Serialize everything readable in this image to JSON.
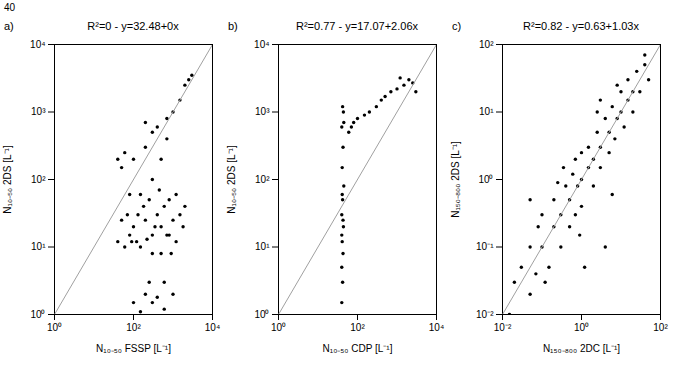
{
  "page": "40",
  "chart_data": [
    {
      "type": "scatter",
      "panel": "a)",
      "title": "R²=0 - y=32.48+0x",
      "x_label": "N₁₀₋₅₀ FSSP [L⁻¹]",
      "y_label": "N₁₀₋₅₀ 2DS [L⁻¹]",
      "log": true,
      "grid": false,
      "xlim": [
        1,
        10000
      ],
      "ylim": [
        1,
        10000
      ],
      "xticks": [
        {
          "value": 1,
          "label": "10⁰"
        },
        {
          "value": 100,
          "label": "10²"
        },
        {
          "value": 10000,
          "label": "10⁴"
        }
      ],
      "yticks": [
        {
          "value": 1,
          "label": "10⁰"
        },
        {
          "value": 10,
          "label": "10¹"
        },
        {
          "value": 100,
          "label": "10²"
        },
        {
          "value": 1000,
          "label": "10³"
        },
        {
          "value": 10000,
          "label": "10⁴"
        }
      ],
      "series": [
        {
          "type": "scatter",
          "marker": "dot",
          "color": "#000000",
          "x": [
            40,
            50,
            60,
            70,
            80,
            100,
            100,
            120,
            150,
            150,
            200,
            200,
            250,
            300,
            300,
            300,
            400,
            400,
            500,
            500,
            600,
            600,
            700,
            800,
            800,
            1000,
            1000,
            1200,
            1500,
            1500,
            2000,
            2000,
            2500,
            3000,
            100,
            200,
            150,
            250,
            400,
            600,
            300,
            500,
            900,
            1000,
            80,
            60,
            40,
            50,
            700,
            350,
            450,
            1200,
            180,
            130,
            90,
            220,
            1800,
            700,
            300,
            200
          ],
          "values": [
            200,
            150,
            250,
            30,
            15,
            20,
            200,
            12,
            60,
            10,
            25,
            300,
            50,
            100,
            15,
            1.5,
            30,
            600,
            20,
            200,
            40,
            1.2,
            800,
            50,
            15,
            25,
            1000,
            60,
            1500,
            30,
            2500,
            40,
            3000,
            3500,
            1.5,
            2,
            1.1,
            3,
            1.8,
            3,
            8,
            8,
            8,
            2,
            60,
            10,
            12,
            25,
            15,
            20,
            70,
            12,
            40,
            30,
            12,
            13,
            20,
            400,
            500,
            700
          ]
        },
        {
          "type": "line",
          "line_style": "solid",
          "color": "#a0a0a0",
          "x": [
            1,
            10000
          ],
          "values": [
            1,
            10000
          ]
        }
      ]
    },
    {
      "type": "scatter",
      "panel": "b)",
      "title": "R²=0.77 - y=17.07+2.06x",
      "x_label": "N₁₀₋₅₀ CDP [L⁻¹]",
      "y_label": "N₁₀₋₅₀ 2DS [L⁻¹]",
      "log": true,
      "grid": false,
      "xlim": [
        1,
        10000
      ],
      "ylim": [
        1,
        10000
      ],
      "xticks": [
        {
          "value": 1,
          "label": "10⁰"
        },
        {
          "value": 100,
          "label": "10²"
        },
        {
          "value": 10000,
          "label": "10⁴"
        }
      ],
      "yticks": [
        {
          "value": 1,
          "label": "10⁰"
        },
        {
          "value": 10,
          "label": "10¹"
        },
        {
          "value": 100,
          "label": "10²"
        },
        {
          "value": 1000,
          "label": "10³"
        },
        {
          "value": 10000,
          "label": "10⁴"
        }
      ],
      "series": [
        {
          "type": "scatter",
          "marker": "dot",
          "color": "#000000",
          "x": [
            40,
            42,
            40,
            43,
            41,
            44,
            40,
            42,
            45,
            41,
            43,
            40,
            44,
            42,
            45,
            41,
            43,
            40,
            60,
            70,
            80,
            100,
            150,
            200,
            300,
            400,
            500,
            700,
            1000,
            1500,
            2000,
            2500,
            3000,
            1200
          ],
          "values": [
            1.5,
            3,
            5,
            8,
            12,
            20,
            30,
            50,
            80,
            150,
            300,
            600,
            1000,
            1200,
            700,
            60,
            25,
            15,
            500,
            600,
            700,
            800,
            900,
            1000,
            1200,
            1500,
            1700,
            2000,
            2200,
            2500,
            3000,
            2700,
            2000,
            3200
          ]
        },
        {
          "type": "line",
          "line_style": "solid",
          "color": "#a0a0a0",
          "x": [
            1,
            10000
          ],
          "values": [
            1,
            10000
          ]
        }
      ]
    },
    {
      "type": "scatter",
      "panel": "c)",
      "title": "R²=0.82 - y=0.63+1.03x",
      "x_label": "N₁₅₀₋₈₀₀ 2DC [L⁻¹]",
      "y_label": "N₁₅₀₋₈₀₀ 2DS [L⁻¹]",
      "log": true,
      "grid": false,
      "xlim": [
        0.01,
        100
      ],
      "ylim": [
        0.01,
        100
      ],
      "xticks": [
        {
          "value": 0.01,
          "label": "10⁻²"
        },
        {
          "value": 1,
          "label": "10⁰"
        },
        {
          "value": 100,
          "label": "10²"
        }
      ],
      "yticks": [
        {
          "value": 0.01,
          "label": "10⁻²"
        },
        {
          "value": 0.1,
          "label": "10⁻¹"
        },
        {
          "value": 1,
          "label": "10⁰"
        },
        {
          "value": 10,
          "label": "10¹"
        },
        {
          "value": 100,
          "label": "10²"
        }
      ],
      "series": [
        {
          "type": "scatter",
          "marker": "dot",
          "color": "#000000",
          "x": [
            0.02,
            0.03,
            0.05,
            0.05,
            0.07,
            0.1,
            0.1,
            0.15,
            0.2,
            0.2,
            0.3,
            0.3,
            0.4,
            0.5,
            0.5,
            0.6,
            0.7,
            0.8,
            1,
            1,
            1,
            1.2,
            1.5,
            1.5,
            2,
            2,
            2.5,
            3,
            3,
            4,
            4,
            5,
            5,
            6,
            7,
            8,
            10,
            10,
            12,
            15,
            15,
            20,
            20,
            25,
            30,
            40,
            50,
            0.08,
            0.25,
            0.9,
            0.12,
            0.35,
            2.5,
            6,
            0.05,
            3,
            0.015,
            8,
            40,
            0.7
          ],
          "values": [
            0.03,
            0.05,
            0.02,
            0.1,
            0.04,
            0.1,
            0.3,
            0.05,
            0.2,
            0.5,
            0.1,
            0.3,
            0.8,
            0.2,
            0.5,
            1.2,
            0.3,
            0.8,
            1,
            0.4,
            2.5,
            0.05,
            1.5,
            3,
            0.8,
            2,
            5,
            1.5,
            3,
            8,
            0.1,
            2.5,
            5,
            12,
            4,
            8,
            10,
            20,
            6,
            15,
            30,
            10,
            20,
            40,
            20,
            50,
            30,
            0.2,
            0.9,
            0.15,
            0.03,
            1.5,
            10,
            0.6,
            0.5,
            15,
            0.01,
            25,
            70,
            2
          ]
        },
        {
          "type": "line",
          "line_style": "solid",
          "color": "#a0a0a0",
          "x": [
            0.01,
            100
          ],
          "values": [
            0.01,
            100
          ]
        }
      ]
    }
  ]
}
